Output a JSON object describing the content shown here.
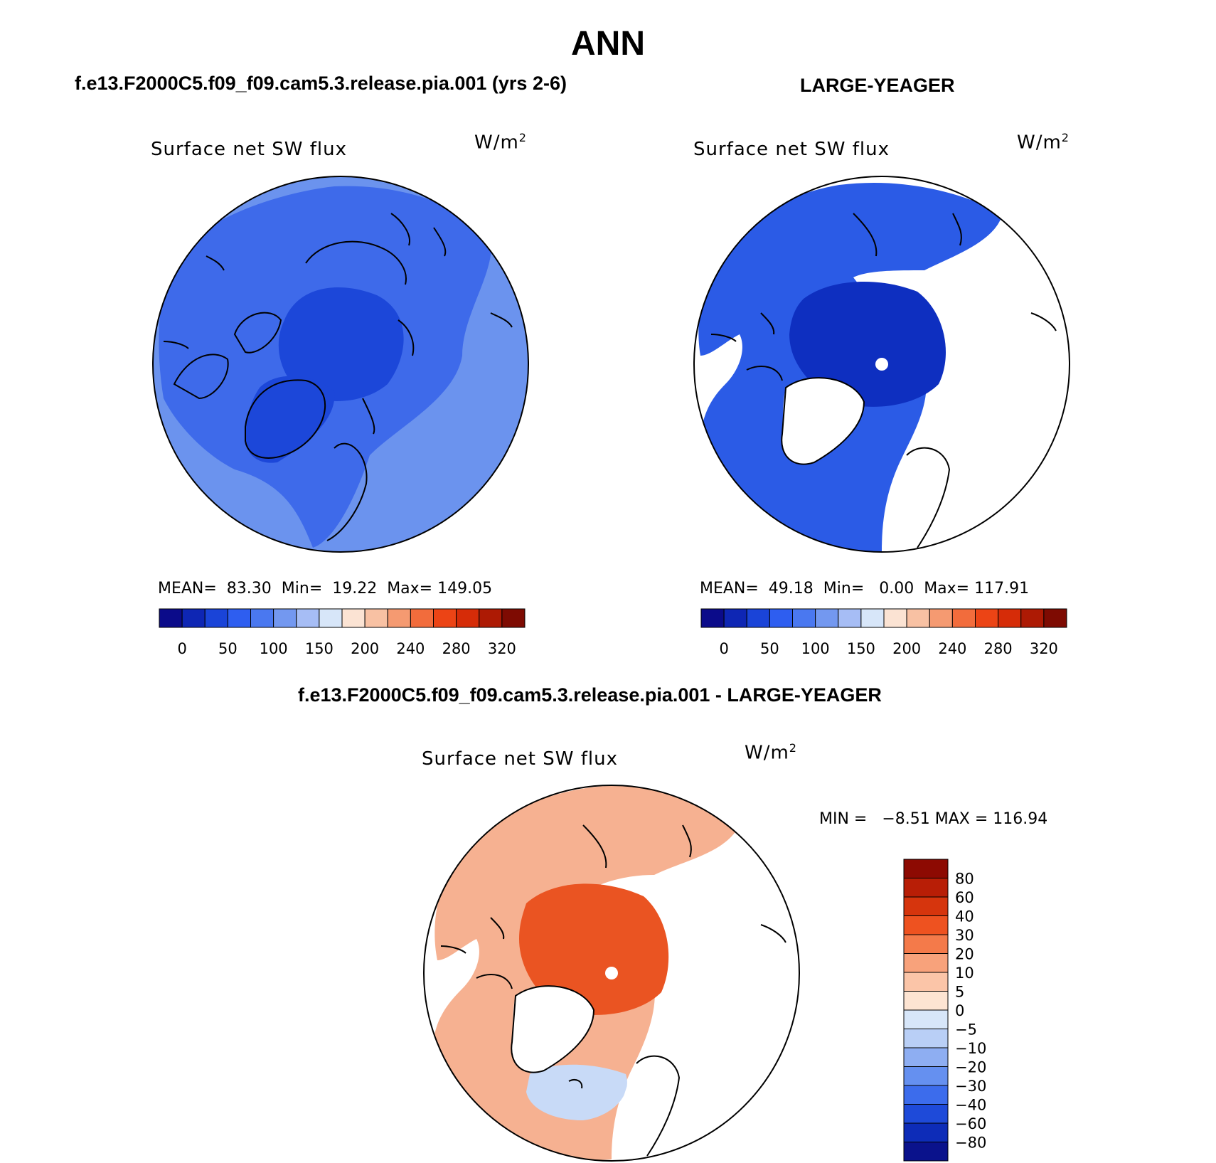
{
  "figure": {
    "season": "ANN",
    "units_base": "W/m",
    "units_exp": "2",
    "variable": "Surface net SW flux"
  },
  "panels": {
    "test": {
      "case_title": "f.e13.F2000C5.f09_f09.cam5.3.release.pia.001 (yrs 2-6)",
      "stats_text": "MEAN=  83.30  Min=  19.22  Max= 149.05",
      "stats": {
        "mean": 83.3,
        "min": 19.22,
        "max": 149.05
      }
    },
    "obs": {
      "case_title": "LARGE-YEAGER",
      "stats_text": "MEAN=  49.18  Min=   0.00  Max= 117.91",
      "stats": {
        "mean": 49.18,
        "min": 0.0,
        "max": 117.91
      }
    },
    "diff": {
      "case_title": "f.e13.F2000C5.f09_f09.cam5.3.release.pia.001 - LARGE-YEAGER",
      "stats_text": "MIN =   −8.51 MAX = 116.94",
      "stats": {
        "min": -8.51,
        "max": 116.94
      }
    }
  },
  "colorbars": {
    "abs": {
      "labels": [
        "0",
        "50",
        "100",
        "150",
        "200",
        "240",
        "280",
        "320"
      ],
      "colors": [
        "#0b0b8a",
        "#0e26b4",
        "#1a44d8",
        "#2e5ef0",
        "#4a78f0",
        "#7398f0",
        "#a6bdf5",
        "#d7e6f9",
        "#fbe3d3",
        "#f8c1a3",
        "#f59a71",
        "#f26c3c",
        "#ec4415",
        "#d62c08",
        "#ad1a04",
        "#7e0b02"
      ]
    },
    "diff": {
      "labels": [
        "80",
        "60",
        "40",
        "30",
        "20",
        "10",
        "5",
        "0",
        "−5",
        "−10",
        "−20",
        "−30",
        "−40",
        "−60",
        "−80"
      ],
      "colors": [
        "#8d0a02",
        "#b81e06",
        "#d6350d",
        "#ee5220",
        "#f47a4a",
        "#f8a27b",
        "#fbc5a8",
        "#fde4d2",
        "#d7e6f9",
        "#b9cff6",
        "#8eaef2",
        "#6590f0",
        "#3c6cec",
        "#1e4ad9",
        "#0d2cb8",
        "#0a128c"
      ]
    }
  },
  "maps": {
    "test": {
      "ocean_color": "#6b93ee",
      "center_color": "#1c47d9",
      "inner_color": "#2d5ae9",
      "land_color": "#3e6aea"
    },
    "obs": {
      "ocean_color": "#2b5be6",
      "center_color": "#0e2fc0",
      "land_color": "#ffffff"
    },
    "diff": {
      "ocean_color": "#f6b191",
      "center_color": "#ea5422",
      "land_color": "#ffffff",
      "neg_color": "#c8daf7"
    }
  }
}
